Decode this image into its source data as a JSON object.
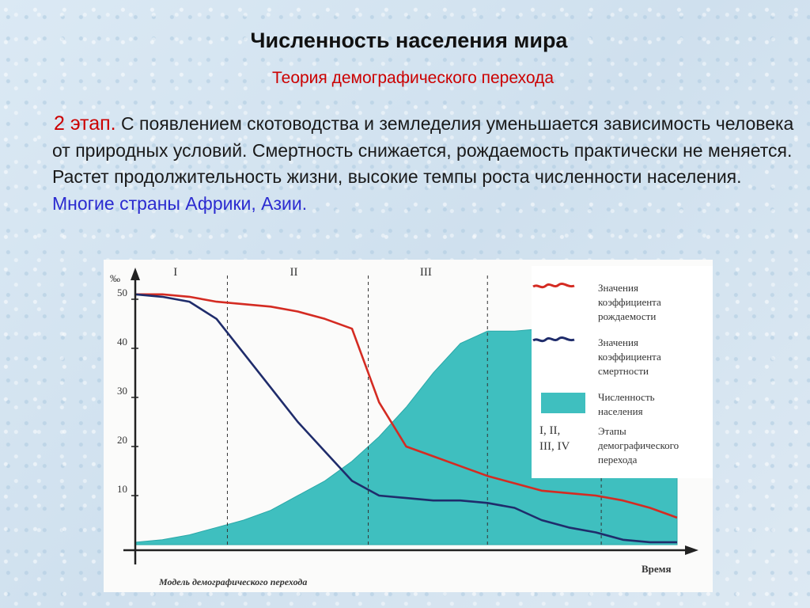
{
  "slide": {
    "title": "Численность населения мира",
    "subtitle": "Теория демографического перехода",
    "stage_label": "2 этап.",
    "text": " С появлением скотоводства и земледелия уменьшается зависимость человека от природных условий. Смертность снижается, рождаемость практически не меняется. Растет продолжительность жизни, высокие темпы роста численности населения.",
    "countries": "Многие страны Африки, Азии."
  },
  "chart_data": {
    "type": "line",
    "caption": "Модель демографического перехода",
    "xlabel": "Время",
    "ylabel": "‰",
    "y_ticks": [
      "10",
      "20",
      "30",
      "40",
      "50"
    ],
    "ylim": [
      0,
      55
    ],
    "stages": [
      "I",
      "II",
      "III",
      "IV"
    ],
    "x": [
      0,
      5,
      10,
      15,
      20,
      25,
      30,
      35,
      40,
      45,
      50,
      55,
      60,
      65,
      70,
      75,
      80,
      85,
      90,
      95,
      100
    ],
    "series": [
      {
        "name": "Значения коэффициента рождаемости",
        "kind": "line",
        "color": "#d42b22",
        "values": [
          51,
          51,
          50.5,
          49.5,
          49,
          48.5,
          47.5,
          46,
          44,
          29,
          20,
          18,
          16,
          14,
          12.5,
          11,
          10.5,
          10,
          9,
          7.5,
          5.5
        ]
      },
      {
        "name": "Значения коэффициента смертности",
        "kind": "line",
        "color": "#1f2c6b",
        "values": [
          51,
          50.5,
          49.5,
          46,
          39,
          32,
          25,
          19,
          13,
          10,
          9.5,
          9,
          9,
          8.5,
          7.5,
          5,
          3.5,
          2.5,
          1,
          0.5,
          0.5
        ]
      },
      {
        "name": "Численность населения",
        "kind": "area",
        "color": "#3fbfbf",
        "values": [
          0.5,
          1,
          2,
          3.5,
          5,
          7,
          10,
          13,
          17,
          22,
          28,
          35,
          41,
          43.5,
          43.5,
          44,
          43.5,
          43,
          43,
          43,
          43
        ]
      }
    ],
    "stage_bounds": [
      17,
      43,
      65,
      86
    ],
    "legend": {
      "birth": [
        "Значения",
        "коэффициента",
        "рождаемости"
      ],
      "death": [
        "Значения",
        "коэффициента",
        "смертности"
      ],
      "population": [
        "Численность",
        "населения"
      ],
      "stages_symbol": [
        "I, II,",
        "III, IV"
      ],
      "stages_text": [
        "Этапы",
        "демографического",
        "перехода"
      ]
    }
  }
}
